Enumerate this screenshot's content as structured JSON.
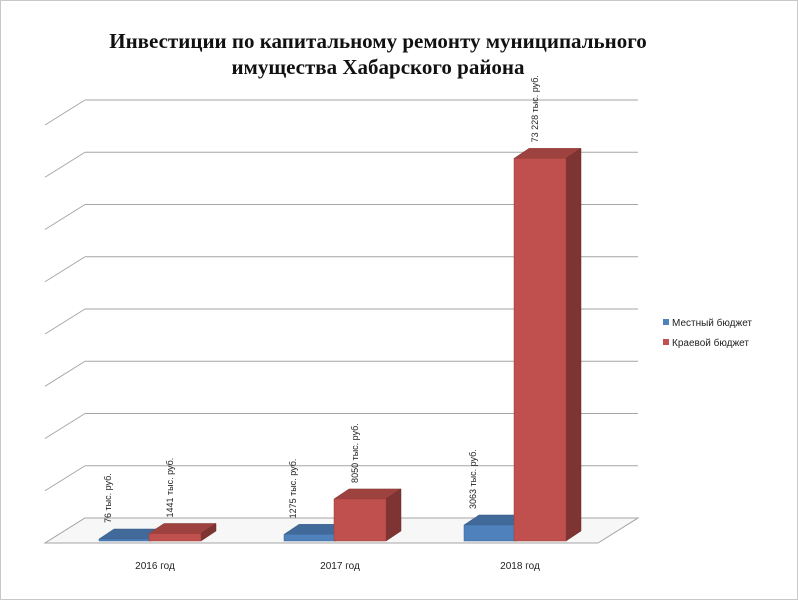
{
  "chart_data": {
    "type": "bar",
    "title": "Инвестиции по капитальному ремонту муниципального имущества Хабарского района",
    "title_lines": [
      "Инвестиции по капитальному  ремонту  муниципального",
      "имущества Хабарского района"
    ],
    "categories": [
      "2016 год",
      "2017 год",
      "2018 год"
    ],
    "series": [
      {
        "name": "Местный бюджет",
        "color": "#4f81bd",
        "values": [
          76,
          1275,
          3063
        ],
        "labels": [
          "76 тыс. руб.",
          "1275 тыс. руб.",
          "3063 тыс. руб."
        ]
      },
      {
        "name": "Краевой бюджет",
        "color": "#c0504d",
        "values": [
          1441,
          8050,
          73228
        ],
        "labels": [
          "1441 тыс. руб.",
          "8050 тыс. руб.",
          "73 228 тыс. руб."
        ]
      }
    ],
    "ylim": [
      0,
      80000
    ],
    "grid": true,
    "legend_position": "right",
    "style": "3d-column"
  }
}
